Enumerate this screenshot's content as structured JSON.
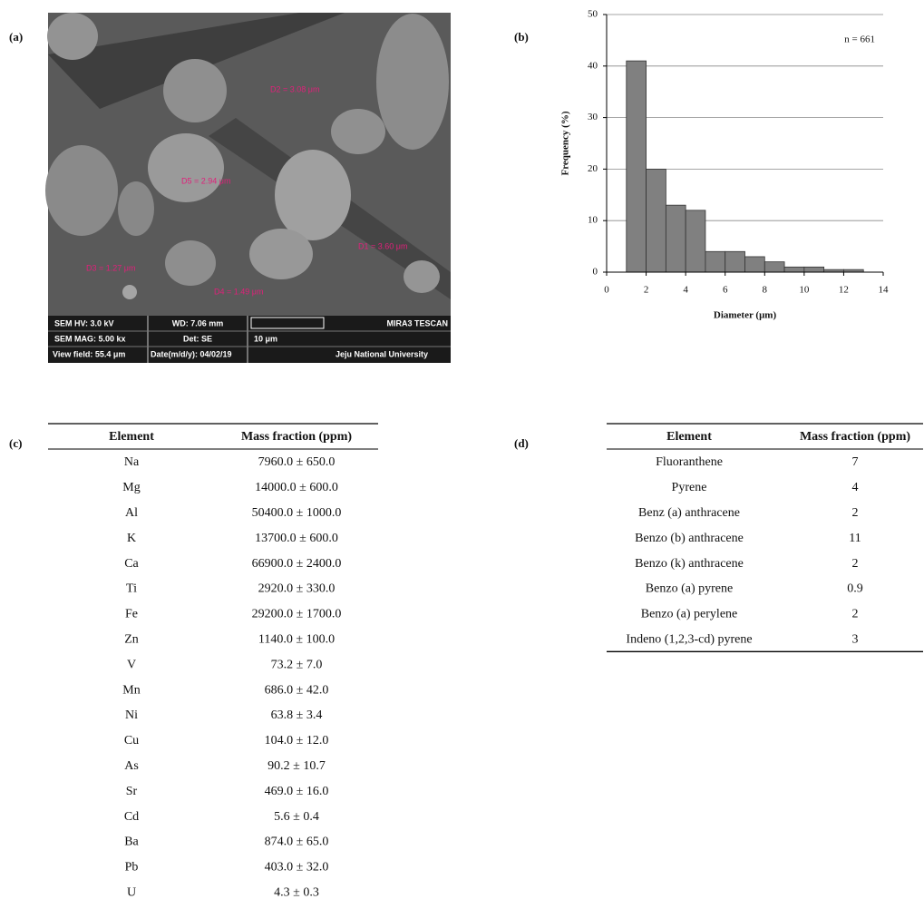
{
  "sem": {
    "label": "(a)",
    "info": [
      "SEM HV: 3.0 kV",
      "WD: 7.06 mm",
      "MIRA3 TESCAN",
      "SEM MAG: 5.00 kx",
      "Det: SE",
      "10 μm",
      "View field: 55.4 μm",
      "Date(m/d/y): 04/02/19",
      "Jeju National University"
    ],
    "measurements": [
      "D2 = 3.08 μm",
      "D5 = 2.94 μm",
      "D1 = 3.60 μm",
      "D3 = 1.27 μm",
      "D4 = 1.49 μm"
    ]
  },
  "chart_data": {
    "type": "histogram",
    "panel_label": "(b)",
    "annotation": "n = 661",
    "x_label": "Diameter (μm)",
    "y_label": "Frequency (%)",
    "bins": [
      1,
      2,
      3,
      4,
      5,
      6,
      7,
      8,
      9,
      10,
      11,
      12,
      13
    ],
    "values": [
      41,
      20,
      13,
      12,
      4,
      4,
      3,
      2,
      1,
      1,
      0.5,
      0.5
    ],
    "color": "#808080",
    "xlim": [
      0,
      14
    ],
    "xticks": [
      0,
      2,
      4,
      6,
      8,
      10,
      12,
      14
    ],
    "ylim": [
      0,
      50
    ],
    "yticks": [
      0,
      10,
      20,
      30,
      40,
      50
    ],
    "grid": true
  },
  "table_c": {
    "label": "(c)",
    "header": [
      "Element",
      "Mass fraction (ppm)"
    ],
    "rows": [
      [
        "Na",
        "7960.0 ± 650.0"
      ],
      [
        "Mg",
        "14000.0 ± 600.0"
      ],
      [
        "Al",
        "50400.0 ± 1000.0"
      ],
      [
        "K",
        "13700.0 ± 600.0"
      ],
      [
        "Ca",
        "66900.0 ± 2400.0"
      ],
      [
        "Ti",
        "2920.0 ± 330.0"
      ],
      [
        "Fe",
        "29200.0 ± 1700.0"
      ],
      [
        "Zn",
        "1140.0 ± 100.0"
      ],
      [
        "V",
        "73.2 ± 7.0"
      ],
      [
        "Mn",
        "686.0 ± 42.0"
      ],
      [
        "Ni",
        "63.8 ± 3.4"
      ],
      [
        "Cu",
        "104.0 ± 12.0"
      ],
      [
        "As",
        "90.2 ± 10.7"
      ],
      [
        "Sr",
        "469.0 ± 16.0"
      ],
      [
        "Cd",
        "5.6 ± 0.4"
      ],
      [
        "Ba",
        "874.0 ± 65.0"
      ],
      [
        "Pb",
        "403.0 ± 32.0"
      ],
      [
        "U",
        "4.3 ± 0.3"
      ]
    ]
  },
  "table_d": {
    "label": "(d)",
    "header": [
      "Element",
      "Mass fraction (ppm)"
    ],
    "rows": [
      [
        "Fluoranthene",
        "7"
      ],
      [
        "Pyrene",
        "4"
      ],
      [
        "Benz (a) anthracene",
        "2"
      ],
      [
        "Benzo (b) anthracene",
        "11"
      ],
      [
        "Benzo (k) anthracene",
        "2"
      ],
      [
        "Benzo (a) pyrene",
        "0.9"
      ],
      [
        "Benzo (a) perylene",
        "2"
      ],
      [
        "Indeno (1,2,3-cd) pyrene",
        "3"
      ]
    ]
  }
}
